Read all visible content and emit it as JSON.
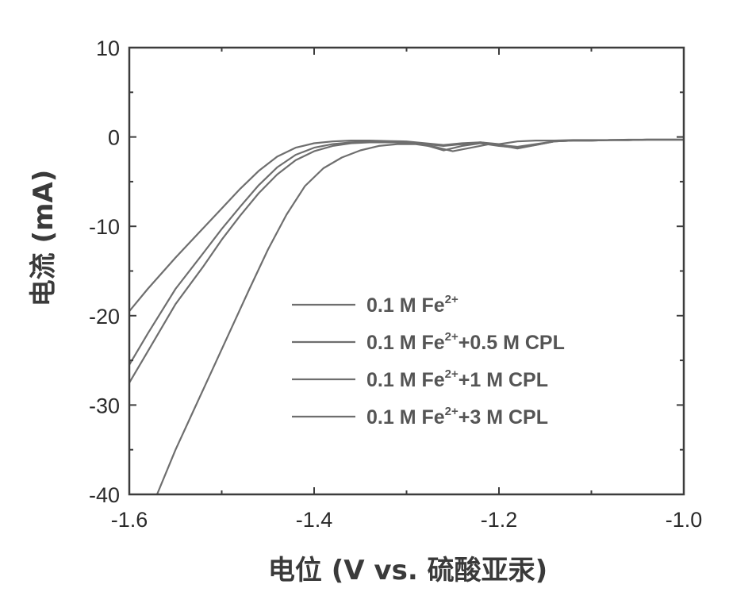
{
  "chart_data": {
    "type": "line",
    "xlabel": "电位 (V vs. 硫酸亚汞)",
    "ylabel": "电流 (mA)",
    "xlim": [
      -1.6,
      -1.0
    ],
    "ylim": [
      -40,
      10
    ],
    "xticks": [
      -1.6,
      -1.4,
      -1.2,
      -1.0
    ],
    "xtick_labels": [
      "-1.6",
      "-1.4",
      "-1.2",
      "-1.0"
    ],
    "yticks": [
      -40,
      -30,
      -20,
      -10,
      0,
      10
    ],
    "ytick_labels": [
      "-40",
      "-30",
      "-20",
      "-10",
      "0",
      "10"
    ],
    "grid": false,
    "legend_position": "center-right",
    "line_color": "#6e6e6e",
    "series": [
      {
        "name": "0.1 M Fe2+",
        "legend_label": {
          "base": "0.1 M Fe",
          "sup": "2+",
          "suffix": ""
        },
        "x": [
          -1.6,
          -1.58,
          -1.55,
          -1.52,
          -1.5,
          -1.48,
          -1.46,
          -1.44,
          -1.42,
          -1.4,
          -1.38,
          -1.36,
          -1.34,
          -1.32,
          -1.3,
          -1.28,
          -1.26,
          -1.24,
          -1.22,
          -1.2,
          -1.18,
          -1.16,
          -1.14,
          -1.12,
          -1.1,
          -1.08,
          -1.06,
          -1.04,
          -1.02,
          -1.0
        ],
        "y": [
          -19.5,
          -17.0,
          -13.5,
          -10.2,
          -8.0,
          -5.8,
          -3.8,
          -2.2,
          -1.2,
          -0.7,
          -0.5,
          -0.4,
          -0.4,
          -0.45,
          -0.5,
          -0.7,
          -0.9,
          -0.7,
          -0.6,
          -0.8,
          -0.5,
          -0.4,
          -0.4,
          -0.35,
          -0.35,
          -0.35,
          -0.3,
          -0.3,
          -0.3,
          -0.3
        ]
      },
      {
        "name": "0.1 M Fe2++0.5 M CPL",
        "legend_label": {
          "base": "0.1 M Fe",
          "sup": "2+",
          "suffix": "+0.5 M CPL"
        },
        "x": [
          -1.6,
          -1.58,
          -1.55,
          -1.52,
          -1.5,
          -1.48,
          -1.46,
          -1.44,
          -1.42,
          -1.4,
          -1.38,
          -1.36,
          -1.34,
          -1.32,
          -1.3,
          -1.28,
          -1.26,
          -1.24,
          -1.22,
          -1.2,
          -1.18,
          -1.16,
          -1.14,
          -1.12,
          -1.1,
          -1.08,
          -1.06,
          -1.04,
          -1.02,
          -1.0
        ],
        "y": [
          -25.5,
          -22.0,
          -17.0,
          -13.0,
          -10.3,
          -7.8,
          -5.4,
          -3.4,
          -2.0,
          -1.2,
          -0.8,
          -0.6,
          -0.5,
          -0.6,
          -0.6,
          -0.8,
          -1.0,
          -0.8,
          -0.6,
          -0.9,
          -1.1,
          -0.8,
          -0.5,
          -0.4,
          -0.4,
          -0.35,
          -0.35,
          -0.3,
          -0.3,
          -0.3
        ]
      },
      {
        "name": "0.1 M Fe2++1 M CPL",
        "legend_label": {
          "base": "0.1 M Fe",
          "sup": "2+",
          "suffix": "+1 M CPL"
        },
        "x": [
          -1.6,
          -1.58,
          -1.55,
          -1.52,
          -1.5,
          -1.48,
          -1.46,
          -1.44,
          -1.42,
          -1.4,
          -1.38,
          -1.36,
          -1.34,
          -1.32,
          -1.3,
          -1.28,
          -1.26,
          -1.24,
          -1.22,
          -1.2,
          -1.18,
          -1.16,
          -1.14,
          -1.12,
          -1.1,
          -1.08,
          -1.06,
          -1.04,
          -1.02,
          -1.0
        ],
        "y": [
          -27.5,
          -24.0,
          -18.7,
          -14.5,
          -11.5,
          -8.8,
          -6.3,
          -4.2,
          -2.6,
          -1.6,
          -1.0,
          -0.7,
          -0.6,
          -0.6,
          -0.6,
          -0.9,
          -1.5,
          -1.0,
          -0.7,
          -1.0,
          -1.2,
          -0.9,
          -0.5,
          -0.4,
          -0.4,
          -0.35,
          -0.35,
          -0.3,
          -0.3,
          -0.3
        ]
      },
      {
        "name": "0.1 M Fe2++3 M CPL",
        "legend_label": {
          "base": "0.1 M Fe",
          "sup": "2+",
          "suffix": "+3 M CPL"
        },
        "x": [
          -1.57,
          -1.55,
          -1.53,
          -1.51,
          -1.49,
          -1.47,
          -1.45,
          -1.43,
          -1.41,
          -1.39,
          -1.37,
          -1.35,
          -1.33,
          -1.31,
          -1.29,
          -1.27,
          -1.25,
          -1.23,
          -1.21,
          -1.2,
          -1.18,
          -1.16,
          -1.14,
          -1.12,
          -1.1,
          -1.08,
          -1.06,
          -1.04,
          -1.02,
          -1.0
        ],
        "y": [
          -40.0,
          -35.0,
          -30.5,
          -26.0,
          -21.5,
          -17.0,
          -12.6,
          -8.7,
          -5.5,
          -3.5,
          -2.3,
          -1.5,
          -1.0,
          -0.8,
          -0.8,
          -1.1,
          -1.6,
          -1.2,
          -0.8,
          -0.9,
          -1.3,
          -0.9,
          -0.5,
          -0.4,
          -0.4,
          -0.35,
          -0.35,
          -0.3,
          -0.3,
          -0.3
        ]
      }
    ]
  }
}
